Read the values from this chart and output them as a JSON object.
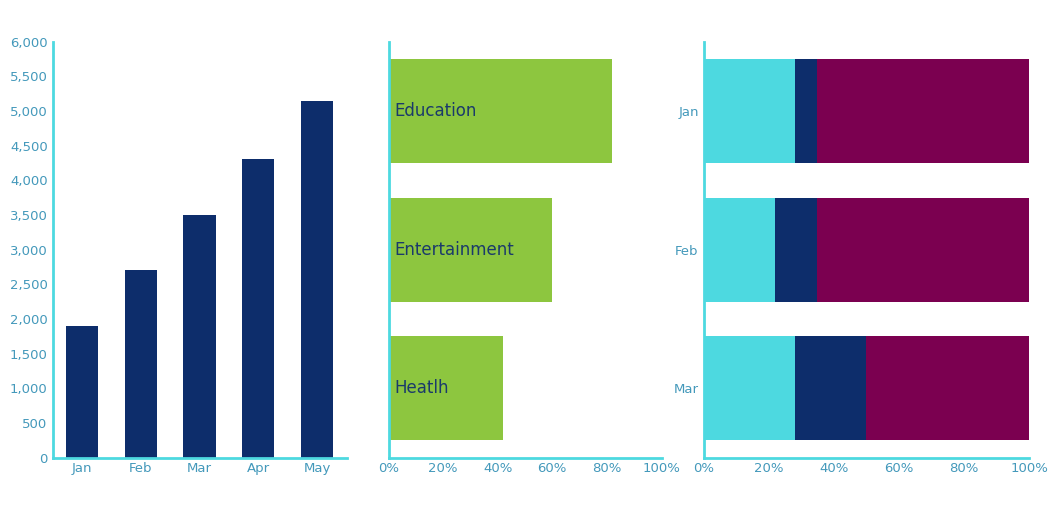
{
  "chart1": {
    "categories": [
      "Jan",
      "Feb",
      "Mar",
      "Apr",
      "May"
    ],
    "values": [
      1900,
      2700,
      3500,
      4300,
      5150
    ],
    "bar_color": "#0d2d6b",
    "ylim": [
      0,
      6000
    ],
    "yticks": [
      0,
      500,
      1000,
      1500,
      2000,
      2500,
      3000,
      3500,
      4000,
      4500,
      5000,
      5500,
      6000
    ],
    "ytick_labels": [
      "0",
      "500",
      "1,000",
      "1,500",
      "2,000",
      "2,500",
      "3,000",
      "3,500",
      "4,000",
      "4,500",
      "5,000",
      "5,500",
      "6,000"
    ],
    "axis_color": "#4dd9e0",
    "tick_color": "#4499bb"
  },
  "chart2": {
    "categories": [
      "Education",
      "Entertainment",
      "Heatlh"
    ],
    "values": [
      82,
      60,
      42
    ],
    "bar_color": "#8dc63f",
    "xlim": [
      0,
      100
    ],
    "xticks": [
      0,
      20,
      40,
      60,
      80,
      100
    ],
    "xtick_labels": [
      "0%",
      "20%",
      "40%",
      "60%",
      "80%",
      "100%"
    ],
    "axis_color": "#4dd9e0",
    "tick_color": "#4499bb",
    "label_fontsize": 12,
    "label_color": "#1a3a6b"
  },
  "chart3": {
    "categories": [
      "Jan",
      "Feb",
      "Mar"
    ],
    "segment1": [
      28,
      22,
      28
    ],
    "segment2": [
      7,
      13,
      22
    ],
    "segment3": [
      65,
      65,
      50
    ],
    "color1": "#4dd9e0",
    "color2": "#0d2d6b",
    "color3": "#7b0050",
    "xlim": [
      0,
      100
    ],
    "xticks": [
      0,
      20,
      40,
      60,
      80,
      100
    ],
    "xtick_labels": [
      "0%",
      "20%",
      "40%",
      "60%",
      "80%",
      "100%"
    ],
    "axis_color": "#4dd9e0",
    "tick_color": "#4499bb"
  },
  "background_color": "#ffffff",
  "tick_label_fontsize": 9.5
}
